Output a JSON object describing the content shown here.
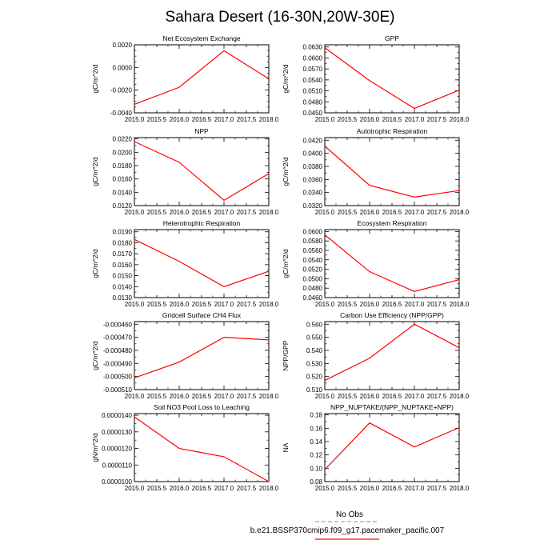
{
  "title": "Sahara Desert (16-30N,20W-30E)",
  "legend": {
    "entries": [
      {
        "label": "No Obs",
        "color": "#9999ee",
        "dash": "dashed"
      },
      {
        "label": "b.e21.BSSP370cmip6.f09_g17.pacemaker_pacific.007",
        "color": "#ff0000",
        "dash": "solid"
      }
    ]
  },
  "colors": {
    "series": "#ff0000",
    "axis": "#000000",
    "obs": "#9999ee"
  },
  "chart_data": [
    {
      "type": "line",
      "title": "Net Ecosystem Exchange",
      "ylabel": "gC/m^2/d",
      "x": [
        2015,
        2016,
        2017,
        2018
      ],
      "values": [
        -0.00325,
        -0.00175,
        0.00148,
        -0.001
      ],
      "xlim": [
        2015,
        2018
      ],
      "ylim": [
        -0.004,
        0.002
      ],
      "xticks": [
        "2015.0",
        "2015.5",
        "2016.0",
        "2016.5",
        "2017.0",
        "2017.5",
        "2018.0"
      ],
      "yticks": [
        -0.004,
        -0.002,
        0.0,
        0.002
      ],
      "ytick_labels": [
        "-0.0040",
        "-0.0020",
        "0.0000",
        "0.0020"
      ],
      "yminor": 4
    },
    {
      "type": "line",
      "title": "GPP",
      "ylabel": "gC/m^2/d",
      "x": [
        2015,
        2016,
        2017,
        2018
      ],
      "values": [
        0.0628,
        0.0538,
        0.0462,
        0.0512
      ],
      "xlim": [
        2015,
        2018
      ],
      "ylim": [
        0.045,
        0.0636
      ],
      "xticks": [
        "2015.0",
        "2015.5",
        "2016.0",
        "2016.5",
        "2017.0",
        "2017.5",
        "2018.0"
      ],
      "yticks": [
        0.045,
        0.048,
        0.051,
        0.054,
        0.057,
        0.06,
        0.063
      ],
      "ytick_labels": [
        "0.0450",
        "0.0480",
        "0.0510",
        "0.0540",
        "0.0570",
        "0.0600",
        "0.0630"
      ],
      "yminor": 2
    },
    {
      "type": "line",
      "title": "NPP",
      "ylabel": "gC/m^2/d",
      "x": [
        2015,
        2016,
        2017,
        2018
      ],
      "values": [
        0.0216,
        0.0185,
        0.0128,
        0.0168
      ],
      "xlim": [
        2015,
        2018
      ],
      "ylim": [
        0.012,
        0.0222
      ],
      "xticks": [
        "2015.0",
        "2015.5",
        "2016.0",
        "2016.5",
        "2017.0",
        "2017.5",
        "2018.0"
      ],
      "yticks": [
        0.012,
        0.014,
        0.016,
        0.018,
        0.02,
        0.022
      ],
      "ytick_labels": [
        "0.0120",
        "0.0140",
        "0.0160",
        "0.0180",
        "0.0200",
        "0.0220"
      ],
      "yminor": 2
    },
    {
      "type": "line",
      "title": "Autotrophic Respiration",
      "ylabel": "gC/m^2/d",
      "x": [
        2015,
        2016,
        2017,
        2018
      ],
      "values": [
        0.0411,
        0.0351,
        0.0333,
        0.0343
      ],
      "xlim": [
        2015,
        2018
      ],
      "ylim": [
        0.032,
        0.0424
      ],
      "xticks": [
        "2015.0",
        "2015.5",
        "2016.0",
        "2016.5",
        "2017.0",
        "2017.5",
        "2018.0"
      ],
      "yticks": [
        0.032,
        0.034,
        0.036,
        0.038,
        0.04,
        0.042
      ],
      "ytick_labels": [
        "0.0320",
        "0.0340",
        "0.0360",
        "0.0380",
        "0.0400",
        "0.0420"
      ],
      "yminor": 2
    },
    {
      "type": "line",
      "title": "Heterotrophic Respiration",
      "ylabel": "gC/m^2/d",
      "x": [
        2015,
        2016,
        2017,
        2018
      ],
      "values": [
        0.0183,
        0.0163,
        0.014,
        0.0154
      ],
      "xlim": [
        2015,
        2018
      ],
      "ylim": [
        0.013,
        0.0192
      ],
      "xticks": [
        "2015.0",
        "2015.5",
        "2016.0",
        "2016.5",
        "2017.0",
        "2017.5",
        "2018.0"
      ],
      "yticks": [
        0.013,
        0.014,
        0.015,
        0.016,
        0.017,
        0.018,
        0.019
      ],
      "ytick_labels": [
        "0.0130",
        "0.0140",
        "0.0150",
        "0.0160",
        "0.0170",
        "0.0180",
        "0.0190"
      ],
      "yminor": 2
    },
    {
      "type": "line",
      "title": "Ecosystem Respiration",
      "ylabel": "gC/m^2/d",
      "x": [
        2015,
        2016,
        2017,
        2018
      ],
      "values": [
        0.0593,
        0.0515,
        0.0473,
        0.0498
      ],
      "xlim": [
        2015,
        2018
      ],
      "ylim": [
        0.046,
        0.0604
      ],
      "xticks": [
        "2015.0",
        "2015.5",
        "2016.0",
        "2016.5",
        "2017.0",
        "2017.5",
        "2018.0"
      ],
      "yticks": [
        0.046,
        0.048,
        0.05,
        0.052,
        0.054,
        0.056,
        0.058,
        0.06
      ],
      "ytick_labels": [
        "0.0460",
        "0.0480",
        "0.0500",
        "0.0520",
        "0.0540",
        "0.0560",
        "0.0580",
        "0.0600"
      ],
      "yminor": 2
    },
    {
      "type": "line",
      "title": "Gridcell Surface CH4 Flux",
      "ylabel": "gC/m^2/d",
      "x": [
        2015,
        2016,
        2017,
        2018
      ],
      "values": [
        -0.000501,
        -0.000489,
        -0.00047,
        -0.000472
      ],
      "xlim": [
        2015,
        2018
      ],
      "ylim": [
        -0.00051,
        -0.000458
      ],
      "xticks": [
        "2015.0",
        "2015.5",
        "2016.0",
        "2016.5",
        "2017.0",
        "2017.5",
        "2018.0"
      ],
      "yticks": [
        -0.00051,
        -0.0005,
        -0.00049,
        -0.00048,
        -0.00047,
        -0.00046
      ],
      "ytick_labels": [
        "-0.000510",
        "-0.000500",
        "-0.000490",
        "-0.000480",
        "-0.000470",
        "-0.000460"
      ],
      "yminor": 2
    },
    {
      "type": "line",
      "title": "Carbon Use Efficiency (NPP/GPP)",
      "ylabel": "NPP/GPP",
      "x": [
        2015,
        2016,
        2017,
        2018
      ],
      "values": [
        0.517,
        0.534,
        0.56,
        0.542
      ],
      "xlim": [
        2015,
        2018
      ],
      "ylim": [
        0.51,
        0.562
      ],
      "xticks": [
        "2015.0",
        "2015.5",
        "2016.0",
        "2016.5",
        "2017.0",
        "2017.5",
        "2018.0"
      ],
      "yticks": [
        0.51,
        0.52,
        0.53,
        0.54,
        0.55,
        0.56
      ],
      "ytick_labels": [
        "0.510",
        "0.520",
        "0.530",
        "0.540",
        "0.550",
        "0.560"
      ],
      "yminor": 2
    },
    {
      "type": "line",
      "title": "Soil NO3 Pool Loss to Leaching",
      "ylabel": "gN/m^2/d",
      "x": [
        2015,
        2016,
        2017,
        2018
      ],
      "values": [
        1.39e-05,
        1.2e-05,
        1.15e-05,
        1e-05
      ],
      "xlim": [
        2015,
        2018
      ],
      "ylim": [
        1e-05,
        1.41e-05
      ],
      "xticks": [
        "2015.0",
        "2015.5",
        "2016.0",
        "2016.5",
        "2017.0",
        "2017.5",
        "2018.0"
      ],
      "yticks": [
        1e-05,
        1.1e-05,
        1.2e-05,
        1.3e-05,
        1.4e-05
      ],
      "ytick_labels": [
        "0.0000100",
        "0.0000110",
        "0.0000120",
        "0.0000130",
        "0.0000140"
      ],
      "yminor": 2
    },
    {
      "type": "line",
      "title": "NPP_NUPTAKE/(NPP_NUPTAKE+NPP)",
      "ylabel": "NA",
      "x": [
        2015,
        2016,
        2017,
        2018
      ],
      "values": [
        0.098,
        0.168,
        0.132,
        0.161
      ],
      "xlim": [
        2015,
        2018
      ],
      "ylim": [
        0.08,
        0.182
      ],
      "xticks": [
        "2015.0",
        "2015.5",
        "2016.0",
        "2016.5",
        "2017.0",
        "2017.5",
        "2018.0"
      ],
      "yticks": [
        0.08,
        0.1,
        0.12,
        0.14,
        0.16,
        0.18
      ],
      "ytick_labels": [
        "0.08",
        "0.10",
        "0.12",
        "0.14",
        "0.16",
        "0.18"
      ],
      "yminor": 2
    }
  ]
}
